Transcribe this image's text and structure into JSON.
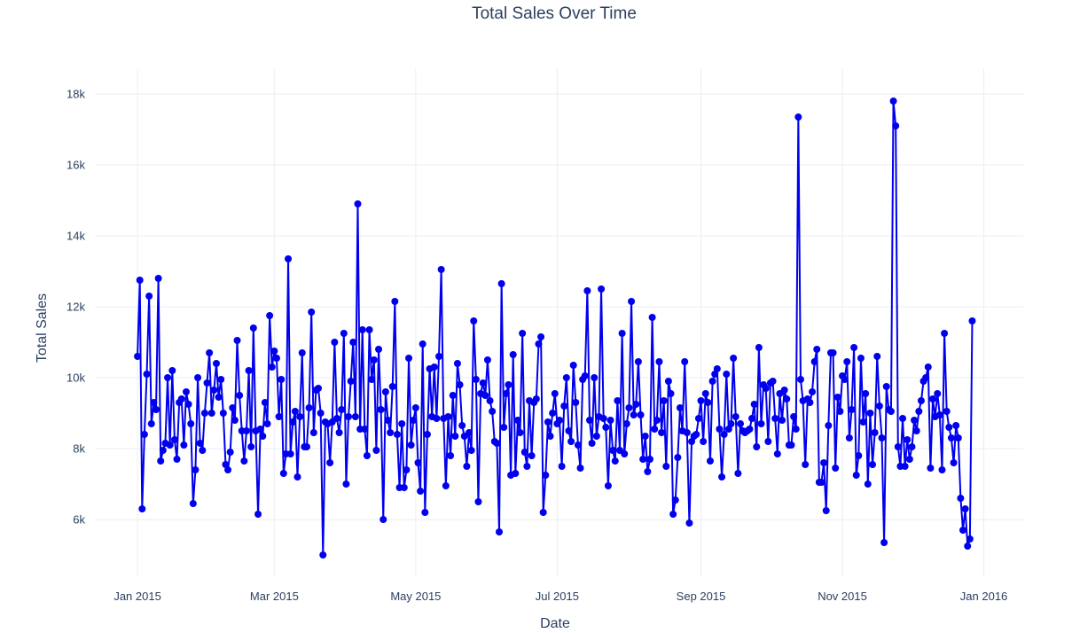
{
  "chart_data": {
    "type": "line",
    "mode": "lines+markers",
    "title": "Total Sales Over Time",
    "xlabel": "Date",
    "ylabel": "Total Sales",
    "xlim": [
      "2014-12-14",
      "2016-01-18"
    ],
    "ylim": [
      4400,
      18700
    ],
    "grid": true,
    "legend": "none",
    "x_ticks": [
      {
        "value": "2015-01-01",
        "label": "Jan 2015"
      },
      {
        "value": "2015-03-01",
        "label": "Mar 2015"
      },
      {
        "value": "2015-05-01",
        "label": "May 2015"
      },
      {
        "value": "2015-07-01",
        "label": "Jul 2015"
      },
      {
        "value": "2015-09-01",
        "label": "Sep 2015"
      },
      {
        "value": "2015-11-01",
        "label": "Nov 2015"
      },
      {
        "value": "2016-01-01",
        "label": "Jan 2016"
      }
    ],
    "y_ticks": [
      {
        "value": 6000,
        "label": "6k"
      },
      {
        "value": 8000,
        "label": "8k"
      },
      {
        "value": 10000,
        "label": "10k"
      },
      {
        "value": 12000,
        "label": "12k"
      },
      {
        "value": 14000,
        "label": "14k"
      },
      {
        "value": 16000,
        "label": "16k"
      },
      {
        "value": 18000,
        "label": "18k"
      }
    ],
    "x_start": "2015-01-01",
    "x_step_days": 1,
    "series": [
      {
        "color": "#0000ee",
        "values": [
          10600,
          12750,
          6300,
          8400,
          10100,
          12300,
          8700,
          9300,
          9100,
          12800,
          7650,
          7950,
          8150,
          10000,
          8100,
          10200,
          8250,
          7700,
          9300,
          9400,
          8100,
          9600,
          9250,
          8700,
          6450,
          7400,
          10000,
          8150,
          7950,
          9000,
          9850,
          10700,
          9000,
          9650,
          10400,
          9450,
          9950,
          9000,
          7550,
          7400,
          7900,
          9150,
          8800,
          11050,
          9500,
          8500,
          7650,
          8500,
          10200,
          8050,
          11400,
          8500,
          6150,
          8550,
          8350,
          9300,
          8700,
          11750,
          10300,
          10750,
          10550,
          8900,
          9950,
          7300,
          7850,
          13350,
          7850,
          8750,
          9050,
          7200,
          8900,
          10700,
          8050,
          8050,
          9150,
          11850,
          8450,
          9650,
          9700,
          9000,
          5000,
          8750,
          8700,
          7600,
          8750,
          11000,
          8850,
          8450,
          9100,
          11250,
          7000,
          8900,
          9900,
          11000,
          8900,
          14900,
          8550,
          11350,
          8550,
          7800,
          11350,
          9950,
          10500,
          7950,
          10800,
          9100,
          6000,
          9600,
          8800,
          8450,
          9750,
          12150,
          8400,
          6900,
          8700,
          6900,
          7400,
          10550,
          8100,
          8800,
          9150,
          7600,
          6800,
          10950,
          6200,
          8400,
          10250,
          8900,
          10300,
          8850,
          10600,
          13050,
          8850,
          6950,
          8900,
          7800,
          9500,
          8350,
          10400,
          9800,
          8650,
          8350,
          7500,
          8450,
          7950,
          11600,
          9950,
          6500,
          9550,
          9850,
          9500,
          10500,
          9350,
          9050,
          8200,
          8150,
          5650,
          12650,
          8600,
          9550,
          9800,
          7250,
          10650,
          7300,
          8800,
          8450,
          11250,
          7900,
          7500,
          9350,
          7800,
          9300,
          9400,
          10950,
          11150,
          6200,
          7250,
          8750,
          8350,
          9000,
          9550,
          8700,
          8800,
          7500,
          9200,
          10000,
          8500,
          8200,
          10350,
          9300,
          8100,
          7450,
          9950,
          10050,
          12450,
          8800,
          8150,
          10000,
          8350,
          8900,
          12500,
          8850,
          8600,
          6950,
          8800,
          7950,
          7650,
          9350,
          7950,
          11250,
          7850,
          8700,
          9150,
          12150,
          8950,
          9250,
          10450,
          8950,
          7700,
          8350,
          7350,
          7700,
          11700,
          8550,
          8800,
          10450,
          8450,
          9350,
          7500,
          9900,
          9550,
          6150,
          6550,
          7750,
          9150,
          8500,
          10450,
          8450,
          5900,
          8200,
          8350,
          8400,
          8850,
          9350,
          8200,
          9550,
          9300,
          7650,
          9900,
          10100,
          10250,
          8550,
          7200,
          8400,
          10100,
          8550,
          8700,
          10550,
          8900,
          7300,
          8700,
          8500,
          8450,
          8500,
          8550,
          8850,
          9250,
          8050,
          10850,
          8700,
          9800,
          9700,
          8200,
          9850,
          9900,
          8850,
          7850,
          9550,
          8800,
          9650,
          9400,
          8100,
          8100,
          8900,
          8550,
          17350,
          9950,
          9350,
          7550,
          9400,
          9300,
          9600,
          10450,
          10800,
          7050,
          7050,
          7600,
          6250,
          8650,
          10700,
          10700,
          7450,
          9450,
          9050,
          10050,
          9950,
          10450,
          8300,
          9100,
          10850,
          7250,
          7800,
          10550,
          8750,
          9550,
          7000,
          9000,
          7550,
          8450,
          10600,
          9200,
          8300,
          5350,
          9750,
          9100,
          9050,
          17800,
          17100,
          8050,
          7500,
          8850,
          7500,
          8250,
          7700,
          8050,
          8800,
          8500,
          9050,
          9350,
          9900,
          10000,
          10300,
          7450,
          9400,
          8900,
          9550,
          8950,
          7400,
          11250,
          9050,
          8600,
          8300,
          7600,
          8650,
          8300,
          6600,
          5700,
          6300,
          5250,
          5450,
          11600
        ]
      }
    ]
  }
}
